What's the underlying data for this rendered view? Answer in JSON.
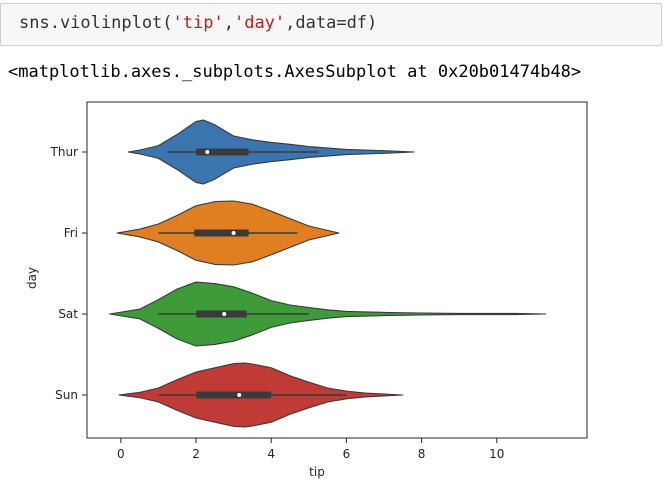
{
  "code_cell": {
    "parts": [
      {
        "text": "sns.violinplot(",
        "type": "code"
      },
      {
        "text": "'tip'",
        "type": "str"
      },
      {
        "text": ",",
        "type": "code"
      },
      {
        "text": "'day'",
        "type": "str"
      },
      {
        "text": ",data=df)",
        "type": "code"
      }
    ]
  },
  "output": {
    "text": "<matplotlib.axes._subplots.AxesSubplot at 0x20b01474b48>"
  },
  "chart_data": {
    "type": "violin",
    "orientation": "horizontal",
    "xlabel": "tip",
    "ylabel": "day",
    "xlim": [
      -0.9,
      12.4
    ],
    "xticks": [
      0,
      2,
      4,
      6,
      8,
      10
    ],
    "categories": [
      "Thur",
      "Fri",
      "Sat",
      "Sun"
    ],
    "colors": [
      "#3a75af",
      "#e07f21",
      "#3f9a3a",
      "#c03a36"
    ],
    "violins": [
      {
        "category": "Thur",
        "min": 0.2,
        "max": 7.8,
        "q1": 2.0,
        "median": 2.3,
        "q3": 3.4,
        "whisker_low": 1.25,
        "whisker_high": 5.25,
        "density": [
          [
            0.2,
            0.0
          ],
          [
            0.5,
            0.06
          ],
          [
            1.0,
            0.2
          ],
          [
            1.5,
            0.55
          ],
          [
            2.0,
            0.95
          ],
          [
            2.2,
            1.0
          ],
          [
            2.5,
            0.85
          ],
          [
            3.0,
            0.5
          ],
          [
            3.5,
            0.38
          ],
          [
            4.0,
            0.3
          ],
          [
            4.5,
            0.24
          ],
          [
            5.0,
            0.17
          ],
          [
            6.0,
            0.08
          ],
          [
            7.0,
            0.04
          ],
          [
            7.8,
            0.0
          ]
        ]
      },
      {
        "category": "Fri",
        "min": -0.1,
        "max": 5.8,
        "q1": 1.95,
        "median": 3.0,
        "q3": 3.4,
        "whisker_low": 1.0,
        "whisker_high": 4.7,
        "density": [
          [
            -0.1,
            0.0
          ],
          [
            0.5,
            0.12
          ],
          [
            1.0,
            0.28
          ],
          [
            1.5,
            0.55
          ],
          [
            2.0,
            0.85
          ],
          [
            2.5,
            0.98
          ],
          [
            3.0,
            1.0
          ],
          [
            3.5,
            0.9
          ],
          [
            4.0,
            0.68
          ],
          [
            4.5,
            0.45
          ],
          [
            5.0,
            0.22
          ],
          [
            5.5,
            0.08
          ],
          [
            5.8,
            0.0
          ]
        ]
      },
      {
        "category": "Sat",
        "min": -0.3,
        "max": 11.3,
        "q1": 2.0,
        "median": 2.75,
        "q3": 3.35,
        "whisker_low": 1.0,
        "whisker_high": 5.0,
        "density": [
          [
            -0.3,
            0.0
          ],
          [
            0.5,
            0.15
          ],
          [
            1.0,
            0.45
          ],
          [
            1.5,
            0.78
          ],
          [
            2.0,
            1.0
          ],
          [
            2.5,
            0.95
          ],
          [
            3.0,
            0.85
          ],
          [
            3.5,
            0.65
          ],
          [
            4.0,
            0.42
          ],
          [
            4.5,
            0.28
          ],
          [
            5.0,
            0.2
          ],
          [
            5.5,
            0.13
          ],
          [
            6.0,
            0.08
          ],
          [
            7.0,
            0.05
          ],
          [
            8.0,
            0.03
          ],
          [
            9.0,
            0.02
          ],
          [
            10.0,
            0.02
          ],
          [
            10.5,
            0.02
          ],
          [
            11.3,
            0.0
          ]
        ]
      },
      {
        "category": "Sun",
        "min": -0.05,
        "max": 7.5,
        "q1": 2.0,
        "median": 3.15,
        "q3": 4.0,
        "whisker_low": 1.0,
        "whisker_high": 6.0,
        "density": [
          [
            -0.05,
            0.0
          ],
          [
            0.5,
            0.08
          ],
          [
            1.0,
            0.22
          ],
          [
            1.5,
            0.48
          ],
          [
            2.0,
            0.72
          ],
          [
            2.5,
            0.85
          ],
          [
            3.0,
            0.98
          ],
          [
            3.3,
            1.0
          ],
          [
            3.5,
            0.97
          ],
          [
            4.0,
            0.85
          ],
          [
            4.5,
            0.6
          ],
          [
            5.0,
            0.4
          ],
          [
            5.5,
            0.22
          ],
          [
            6.0,
            0.12
          ],
          [
            6.5,
            0.06
          ],
          [
            7.0,
            0.03
          ],
          [
            7.5,
            0.0
          ]
        ]
      }
    ]
  }
}
